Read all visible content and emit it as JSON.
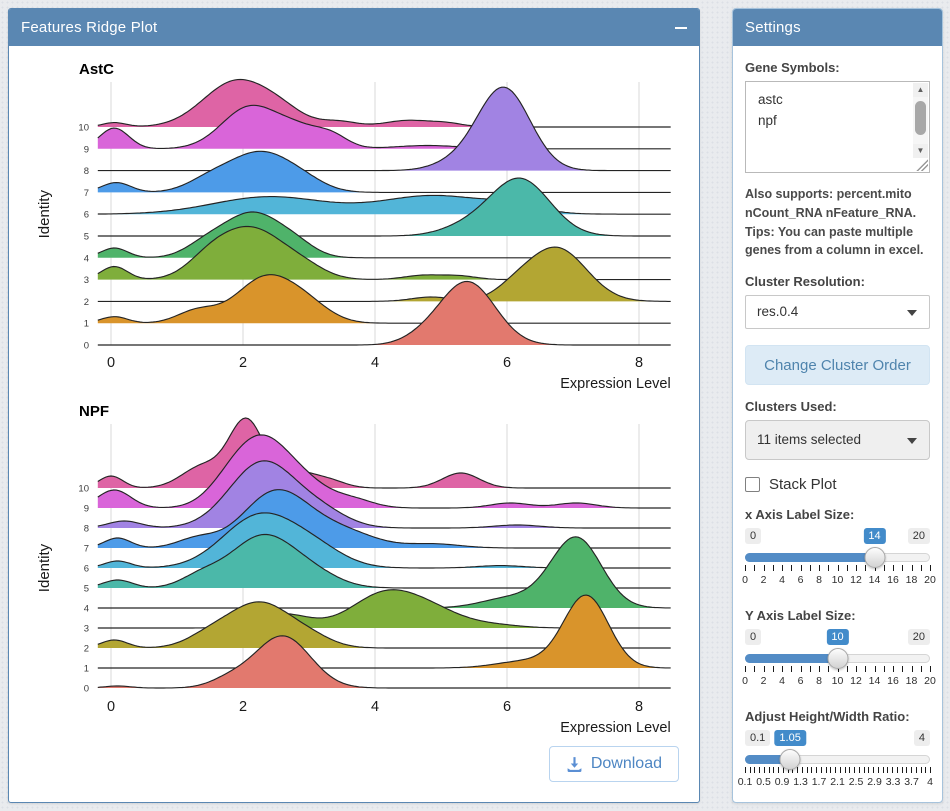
{
  "left_panel": {
    "title": "Features Ridge Plot",
    "collapse_icon": "minus-icon",
    "download_label": "Download"
  },
  "settings": {
    "title": "Settings",
    "gene_symbols_label": "Gene Symbols:",
    "gene_symbols_value": "astc\nnpf",
    "help_text": "Also supports: percent.mito nCount_RNA nFeature_RNA. Tips: You can paste multiple genes from a column in excel.",
    "cluster_resolution_label": "Cluster Resolution:",
    "cluster_resolution_value": "res.0.4",
    "change_cluster_order_label": "Change Cluster Order",
    "clusters_used_label": "Clusters Used:",
    "clusters_used_value": "11 items selected",
    "stack_plot_label": "Stack Plot",
    "stack_plot_checked": false,
    "accent_color": "#428bca",
    "slider_fill_color": "#538cc6",
    "sliders": [
      {
        "id": "x-axis-label-size",
        "label": "x Axis Label Size:",
        "min": "0",
        "max": "20",
        "value": "14",
        "percent": 70,
        "tick_labels": [
          "0",
          "2",
          "4",
          "6",
          "8",
          "10",
          "12",
          "14",
          "16",
          "18",
          "20"
        ],
        "minor_ticks": 21
      },
      {
        "id": "y-axis-label-size",
        "label": "Y Axis Label Size:",
        "min": "0",
        "max": "20",
        "value": "10",
        "percent": 50,
        "tick_labels": [
          "0",
          "2",
          "4",
          "6",
          "8",
          "10",
          "12",
          "14",
          "16",
          "18",
          "20"
        ],
        "minor_ticks": 21
      },
      {
        "id": "height-width-ratio",
        "label": "Adjust Height/Width Ratio:",
        "min": "0.1",
        "max": "4",
        "value": "1.05",
        "percent": 24.4,
        "tick_labels": [
          "0.1",
          "0.5",
          "0.9",
          "1.3",
          "1.7",
          "2.1",
          "2.5",
          "2.9",
          "3.3",
          "3.7",
          "4"
        ],
        "minor_ticks": 40
      }
    ]
  },
  "chart_data": [
    {
      "type": "area",
      "variant": "ridgeline-density",
      "title": "AstC",
      "xlabel": "Expression Level",
      "ylabel": "Identity",
      "x_ticks": [
        0,
        2,
        4,
        6,
        8
      ],
      "xlim": [
        -0.2,
        8.48
      ],
      "grid": "vertical-only",
      "legend": "none",
      "rows": [
        {
          "identity": "10",
          "color": "#DE64A5",
          "peaks": [
            [
              0.05,
              0.18,
              0.2
            ],
            [
              1.9,
              0.5,
              2.1
            ],
            [
              2.6,
              0.35,
              0.5
            ],
            [
              3.45,
              0.28,
              0.25
            ],
            [
              4.5,
              0.35,
              0.3
            ],
            [
              5.1,
              0.25,
              0.15
            ]
          ]
        },
        {
          "identity": "9",
          "color": "#D965D9",
          "peaks": [
            [
              0.05,
              0.22,
              0.95
            ],
            [
              2.1,
              0.42,
              1.9
            ],
            [
              2.85,
              0.35,
              0.8
            ],
            [
              3.35,
              0.25,
              0.5
            ],
            [
              4.8,
              0.5,
              0.15
            ]
          ]
        },
        {
          "identity": "8",
          "color": "#A183E3",
          "peaks": [
            [
              5.2,
              0.35,
              0.3
            ],
            [
              5.95,
              0.4,
              3.8
            ]
          ]
        },
        {
          "identity": "7",
          "color": "#4D9BE8",
          "peaks": [
            [
              0.08,
              0.22,
              0.45
            ],
            [
              1.5,
              0.35,
              0.55
            ],
            [
              2.25,
              0.45,
              1.75
            ],
            [
              2.9,
              0.35,
              0.45
            ]
          ]
        },
        {
          "identity": "6",
          "color": "#52B5D8",
          "peaks": [
            [
              2.4,
              0.85,
              0.8
            ],
            [
              4.9,
              0.8,
              0.85
            ],
            [
              6.1,
              0.4,
              0.3
            ]
          ]
        },
        {
          "identity": "5",
          "color": "#4BB8A9",
          "peaks": [
            [
              5.4,
              0.4,
              0.4
            ],
            [
              6.2,
              0.45,
              2.6
            ]
          ]
        },
        {
          "identity": "4",
          "color": "#4FB36A",
          "peaks": [
            [
              0.05,
              0.2,
              0.45
            ],
            [
              1.45,
              0.32,
              0.6
            ],
            [
              2.15,
              0.42,
              2.0
            ],
            [
              2.8,
              0.3,
              0.5
            ]
          ]
        },
        {
          "identity": "3",
          "color": "#7FAE3B",
          "peaks": [
            [
              0.05,
              0.2,
              0.6
            ],
            [
              1.5,
              0.35,
              0.9
            ],
            [
              2.15,
              0.45,
              2.2
            ],
            [
              2.9,
              0.35,
              0.55
            ],
            [
              4.75,
              0.3,
              0.2
            ],
            [
              5.3,
              0.25,
              0.15
            ]
          ]
        },
        {
          "identity": "2",
          "color": "#B3A633",
          "peaks": [
            [
              4.85,
              0.3,
              0.2
            ],
            [
              6.1,
              0.3,
              0.4
            ],
            [
              6.75,
              0.45,
              2.45
            ]
          ]
        },
        {
          "identity": "1",
          "color": "#D9942B",
          "peaks": [
            [
              0.05,
              0.2,
              0.3
            ],
            [
              1.3,
              0.3,
              0.55
            ],
            [
              2.35,
              0.45,
              2.1
            ],
            [
              3.0,
              0.35,
              0.6
            ]
          ]
        },
        {
          "identity": "0",
          "color": "#E2796E",
          "peaks": [
            [
              4.7,
              0.3,
              0.25
            ],
            [
              5.4,
              0.42,
              2.9
            ]
          ]
        }
      ]
    },
    {
      "type": "area",
      "variant": "ridgeline-density",
      "title": "NPF",
      "xlabel": "Expression Level",
      "ylabel": "Identity",
      "x_ticks": [
        0,
        2,
        4,
        6,
        8
      ],
      "xlim": [
        -0.2,
        8.48
      ],
      "grid": "vertical-only",
      "legend": "none",
      "rows": [
        {
          "identity": "10",
          "color": "#DE64A5",
          "peaks": [
            [
              0.0,
              0.18,
              0.6
            ],
            [
              1.4,
              0.32,
              1.1
            ],
            [
              2.05,
              0.26,
              3.3
            ],
            [
              2.75,
              0.3,
              0.85
            ],
            [
              3.3,
              0.25,
              0.35
            ],
            [
              5.3,
              0.28,
              0.75
            ]
          ]
        },
        {
          "identity": "9",
          "color": "#D965D9",
          "peaks": [
            [
              0.05,
              0.25,
              0.9
            ],
            [
              1.8,
              0.35,
              1.0
            ],
            [
              2.3,
              0.4,
              3.0
            ],
            [
              2.95,
              0.4,
              1.1
            ],
            [
              3.7,
              0.3,
              0.35
            ],
            [
              6.05,
              0.3,
              0.25
            ],
            [
              7.05,
              0.3,
              0.25
            ]
          ]
        },
        {
          "identity": "8",
          "color": "#A183E3",
          "peaks": [
            [
              0.2,
              0.25,
              0.35
            ],
            [
              2.3,
              0.5,
              3.3
            ],
            [
              3.2,
              0.4,
              0.7
            ],
            [
              6.15,
              0.35,
              0.15
            ]
          ]
        },
        {
          "identity": "7",
          "color": "#4D9BE8",
          "peaks": [
            [
              0.1,
              0.2,
              0.5
            ],
            [
              1.3,
              0.3,
              0.45
            ],
            [
              2.5,
              0.5,
              2.8
            ],
            [
              3.5,
              0.5,
              0.8
            ],
            [
              4.9,
              0.4,
              0.2
            ]
          ]
        },
        {
          "identity": "6",
          "color": "#52B5D8",
          "peaks": [
            [
              0.1,
              0.2,
              0.35
            ],
            [
              2.25,
              0.55,
              2.6
            ],
            [
              3.1,
              0.45,
              0.8
            ],
            [
              5.9,
              0.35,
              0.12
            ]
          ]
        },
        {
          "identity": "5",
          "color": "#4BB8A9",
          "peaks": [
            [
              0.1,
              0.22,
              0.4
            ],
            [
              1.35,
              0.3,
              0.5
            ],
            [
              2.3,
              0.5,
              2.6
            ],
            [
              3.1,
              0.4,
              0.5
            ]
          ]
        },
        {
          "identity": "4",
          "color": "#4FB36A",
          "peaks": [
            [
              5.9,
              0.4,
              0.3
            ],
            [
              6.3,
              0.4,
              0.3
            ],
            [
              7.05,
              0.38,
              3.5
            ]
          ]
        },
        {
          "identity": "3",
          "color": "#7FAE3B",
          "peaks": [
            [
              2.6,
              0.4,
              0.7
            ],
            [
              4.15,
              0.5,
              1.7
            ],
            [
              4.9,
              0.45,
              0.7
            ],
            [
              5.8,
              0.4,
              0.15
            ]
          ]
        },
        {
          "identity": "2",
          "color": "#B3A633",
          "peaks": [
            [
              0.05,
              0.2,
              0.4
            ],
            [
              1.5,
              0.35,
              0.6
            ],
            [
              2.25,
              0.45,
              2.2
            ],
            [
              3.0,
              0.35,
              0.5
            ]
          ]
        },
        {
          "identity": "1",
          "color": "#D9942B",
          "peaks": [
            [
              6.3,
              0.45,
              0.35
            ],
            [
              7.2,
              0.34,
              3.6
            ]
          ]
        },
        {
          "identity": "0",
          "color": "#E2796E",
          "peaks": [
            [
              0.1,
              0.2,
              0.1
            ],
            [
              1.8,
              0.3,
              0.4
            ],
            [
              2.6,
              0.42,
              2.6
            ]
          ]
        }
      ]
    }
  ]
}
